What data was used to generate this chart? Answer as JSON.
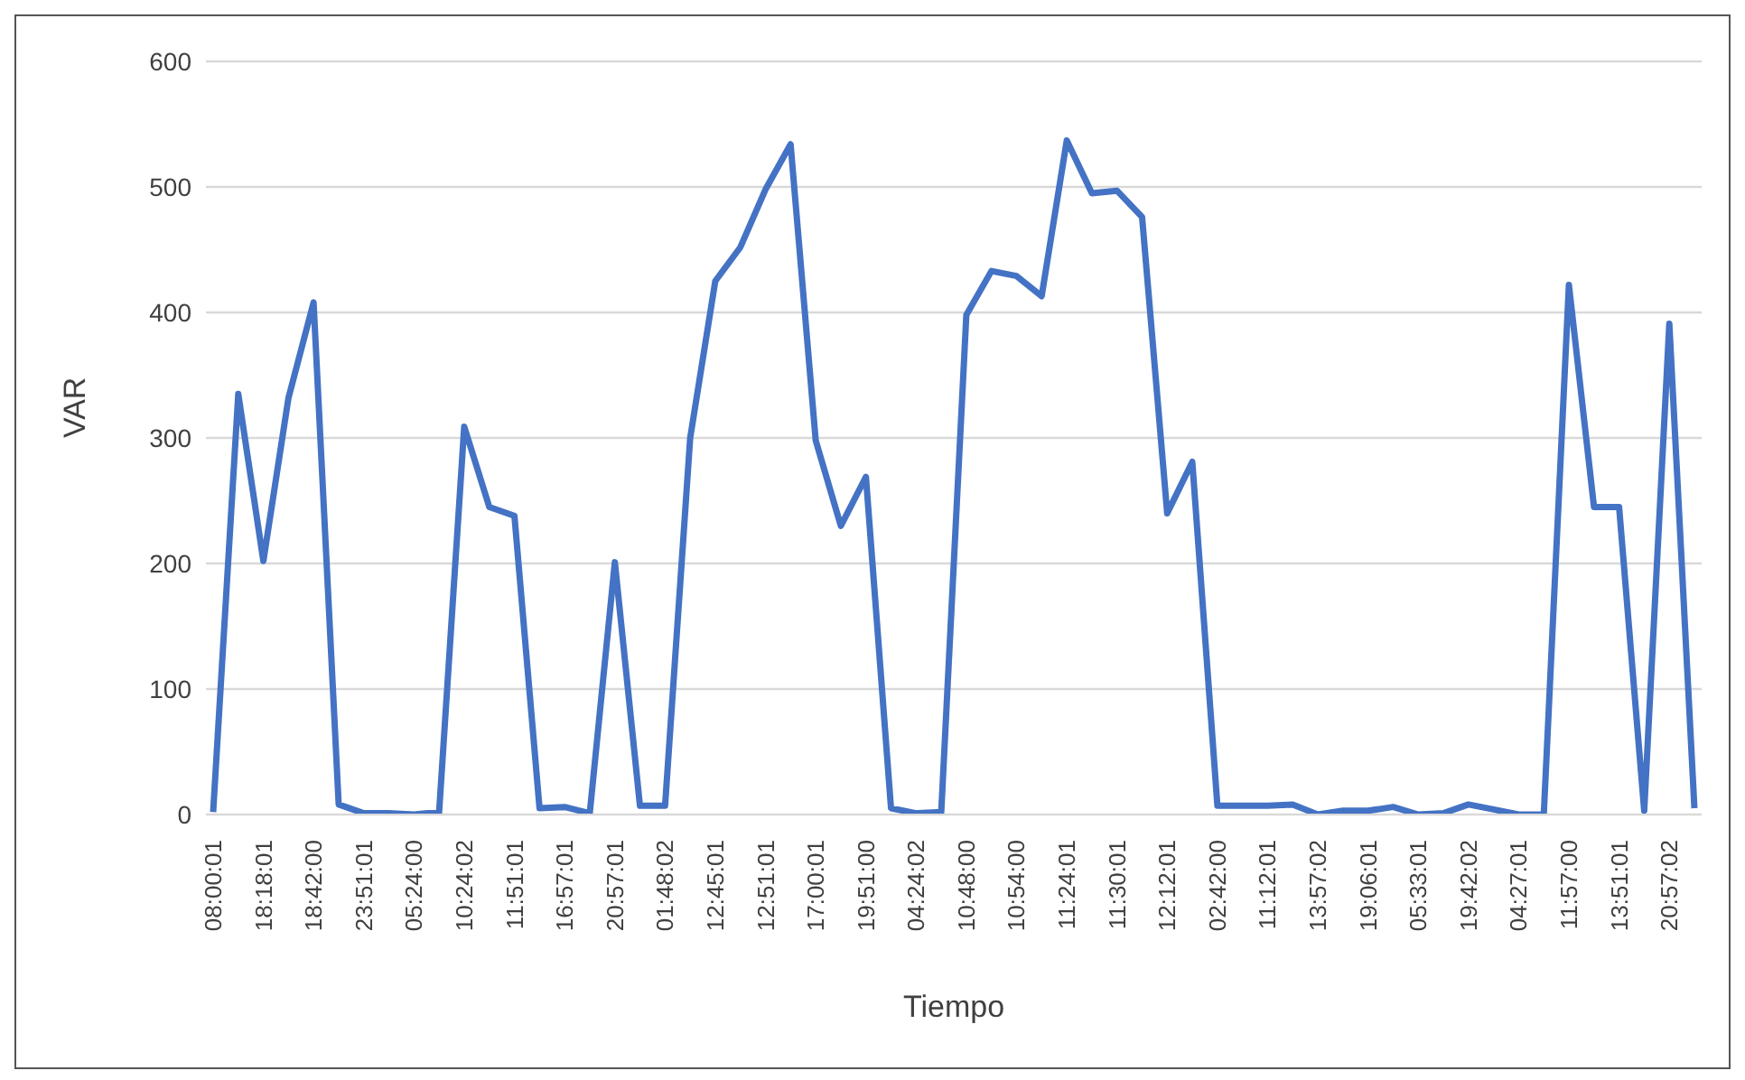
{
  "chart_data": {
    "type": "line",
    "xlabel": "Tiempo",
    "ylabel": "VAR",
    "categories": [
      "08:00:01",
      null,
      "18:18:01",
      null,
      "18:42:00",
      null,
      "23:51:01",
      null,
      "05:24:00",
      null,
      "10:24:02",
      null,
      "11:51:01",
      null,
      "16:57:01",
      null,
      "20:57:01",
      null,
      "01:48:02",
      null,
      "12:45:01",
      null,
      "12:51:01",
      null,
      "17:00:01",
      null,
      "19:51:00",
      null,
      "04:24:02",
      null,
      "10:48:00",
      null,
      "10:54:00",
      null,
      "11:24:01",
      null,
      "11:30:01",
      null,
      "12:12:01",
      null,
      "02:42:00",
      null,
      "11:12:01",
      null,
      "13:57:02",
      null,
      "19:06:01",
      null,
      "05:33:01",
      null,
      "19:42:02",
      null,
      "04:27:01",
      null,
      "11:57:00",
      null,
      "13:51:01",
      null,
      "20:57:02",
      null
    ],
    "series": [
      {
        "color": "#4472c4",
        "values": [
          2,
          335,
          202,
          332,
          408,
          8,
          1,
          1,
          0,
          2,
          309,
          245,
          238,
          5,
          6,
          1,
          201,
          7,
          7,
          300,
          425,
          452,
          498,
          534,
          298,
          230,
          269,
          5,
          1,
          2,
          398,
          433,
          429,
          413,
          537,
          495,
          497,
          476,
          240,
          281,
          7,
          7,
          7,
          8,
          0,
          3,
          3,
          6,
          0,
          1,
          8,
          4,
          0,
          0,
          422,
          245,
          245,
          3,
          391,
          5
        ]
      }
    ],
    "ylim": [
      0,
      600
    ],
    "yticks": [
      0,
      100,
      200,
      300,
      400,
      500,
      600
    ],
    "grid": "y",
    "marker": "none",
    "line_style": "solid"
  }
}
